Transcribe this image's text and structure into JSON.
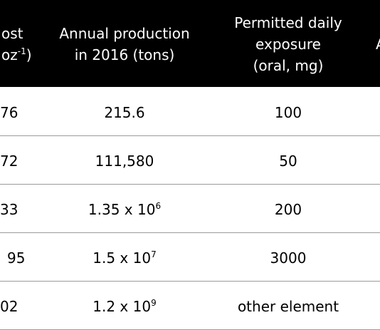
{
  "table": {
    "header": [
      {
        "lines": [
          {
            "text": "ost"
          },
          {
            "text": "oz",
            "sup": "-1",
            "after": ")"
          }
        ]
      },
      {
        "lines": [
          {
            "text": "Annual production"
          },
          {
            "text": "in 2016 (tons)"
          }
        ]
      },
      {
        "lines": [
          {
            "text": "Permitted daily"
          },
          {
            "text": "exposure"
          },
          {
            "text": "(oral, mg)"
          }
        ]
      },
      {
        "lines": [
          {
            "text": "A"
          }
        ]
      }
    ],
    "rows": [
      [
        {
          "text": "76"
        },
        {
          "text": "215.6"
        },
        {
          "text": "100"
        }
      ],
      [
        {
          "text": "72"
        },
        {
          "text": "111,580"
        },
        {
          "text": "50"
        }
      ],
      [
        {
          "text": "33"
        },
        {
          "text": "1.35 x 10",
          "sup": "6"
        },
        {
          "text": "200"
        }
      ],
      [
        {
          "text": "95"
        },
        {
          "text": "1.5 x 10",
          "sup": "7"
        },
        {
          "text": "3000"
        }
      ],
      [
        {
          "text": "02"
        },
        {
          "text": "1.2 x 10",
          "sup": "9"
        },
        {
          "text": "other element"
        }
      ]
    ]
  }
}
